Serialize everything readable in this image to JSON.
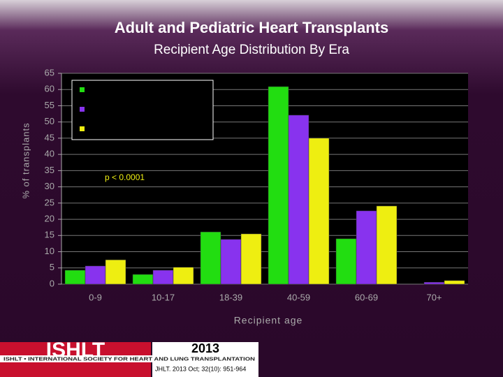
{
  "chart_data": {
    "type": "bar",
    "title": "Adult and Pediatric Heart Transplants",
    "subtitle": "Recipient Age Distribution By Era",
    "y_label": "% of transplants",
    "x_label": "Recipient age",
    "annotation": "p < 0.0001",
    "categories": [
      "0-9",
      "10-17",
      "18-39",
      "40-59",
      "60-69",
      "70+"
    ],
    "series": [
      {
        "color": "#22dd11",
        "values": [
          4.3,
          3.0,
          16.1,
          60.9,
          14.0,
          0
        ]
      },
      {
        "color": "#8833ee",
        "values": [
          5.6,
          4.3,
          13.8,
          52.1,
          22.6,
          0.6
        ]
      },
      {
        "color": "#eeee11",
        "values": [
          7.5,
          5.2,
          15.5,
          45.0,
          24.1,
          1.1
        ]
      }
    ],
    "ylim": [
      0,
      65
    ],
    "yticks": [
      0,
      5,
      10,
      15,
      20,
      25,
      30,
      35,
      40,
      45,
      50,
      55,
      60,
      65
    ],
    "grid": true
  },
  "footer": {
    "logo": "ISHLT",
    "society": "ISHLT • INTERNATIONAL SOCIETY FOR HEART AND LUNG TRANSPLANTATION",
    "year": "2013",
    "citation": "JHLT. 2013 Oct; 32(10): 951-964"
  }
}
